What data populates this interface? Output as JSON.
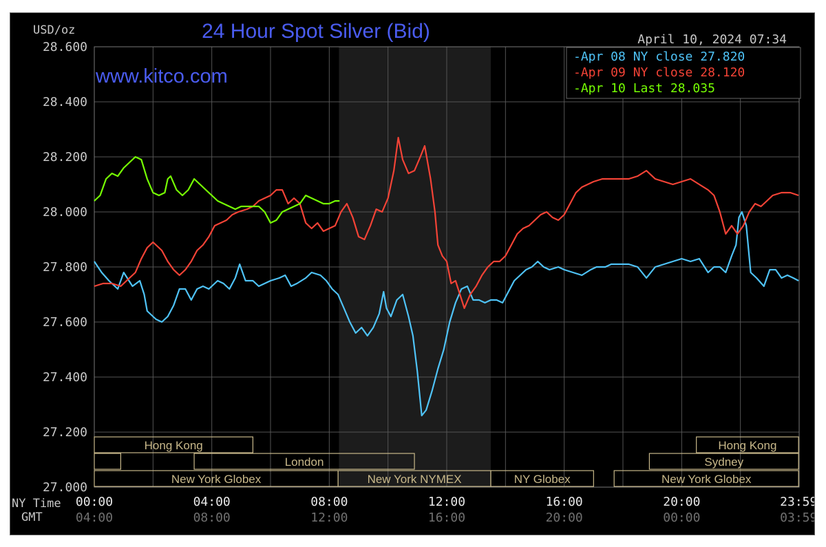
{
  "chart_data": {
    "type": "line",
    "title": "24 Hour Spot Silver (Bid)",
    "ylabel": "USD/oz",
    "watermark": "www.kitco.com",
    "timestamp": "April 10, 2024 07:34",
    "ylim": [
      27.0,
      28.6
    ],
    "y_ticks": [
      "28.600",
      "28.400",
      "28.200",
      "28.000",
      "27.800",
      "27.600",
      "27.400",
      "27.200",
      "27.000"
    ],
    "y_tick_values": [
      28.6,
      28.4,
      28.2,
      28.0,
      27.8,
      27.6,
      27.4,
      27.2,
      27.0
    ],
    "x_axis_label_ny": "NY Time",
    "x_axis_label_gmt": "GMT",
    "x_ticks_ny": [
      "00:00",
      "04:00",
      "08:00",
      "12:00",
      "16:00",
      "20:00",
      "23:59"
    ],
    "x_ticks_gmt": [
      "04:00",
      "08:00",
      "12:00",
      "16:00",
      "20:00",
      "00:00",
      "03:59"
    ],
    "x_tick_hours": [
      0,
      4,
      8,
      12,
      16,
      20,
      23.983
    ],
    "xlim_hours": [
      0,
      24
    ],
    "grid": true,
    "legend_position": "top-right",
    "shaded_session_hours": [
      8.33,
      13.5
    ],
    "colors": {
      "background": "#000000",
      "grid": "#555555",
      "axis_text": "#c8c8c8",
      "title": "#4a5cf0",
      "session_box": "#c8b88a",
      "shade": "#1c1c1c"
    },
    "series": [
      {
        "name": "Apr 08 NY close 27.820",
        "color": "#4fc3f7",
        "points": [
          [
            0,
            27.82
          ],
          [
            0.25,
            27.78
          ],
          [
            0.5,
            27.75
          ],
          [
            0.8,
            27.72
          ],
          [
            1.0,
            27.78
          ],
          [
            1.3,
            27.73
          ],
          [
            1.55,
            27.75
          ],
          [
            1.7,
            27.7
          ],
          [
            1.8,
            27.64
          ],
          [
            2.1,
            27.61
          ],
          [
            2.3,
            27.6
          ],
          [
            2.5,
            27.62
          ],
          [
            2.7,
            27.66
          ],
          [
            2.9,
            27.72
          ],
          [
            3.1,
            27.72
          ],
          [
            3.3,
            27.68
          ],
          [
            3.5,
            27.72
          ],
          [
            3.7,
            27.73
          ],
          [
            3.9,
            27.72
          ],
          [
            4.2,
            27.75
          ],
          [
            4.4,
            27.74
          ],
          [
            4.6,
            27.72
          ],
          [
            4.8,
            27.76
          ],
          [
            4.95,
            27.81
          ],
          [
            5.15,
            27.75
          ],
          [
            5.4,
            27.75
          ],
          [
            5.6,
            27.73
          ],
          [
            5.8,
            27.74
          ],
          [
            6.0,
            27.75
          ],
          [
            6.3,
            27.76
          ],
          [
            6.5,
            27.77
          ],
          [
            6.7,
            27.73
          ],
          [
            6.9,
            27.74
          ],
          [
            7.2,
            27.76
          ],
          [
            7.4,
            27.78
          ],
          [
            7.7,
            27.77
          ],
          [
            7.9,
            27.75
          ],
          [
            8.1,
            27.72
          ],
          [
            8.3,
            27.7
          ],
          [
            8.5,
            27.65
          ],
          [
            8.7,
            27.6
          ],
          [
            8.9,
            27.56
          ],
          [
            9.1,
            27.58
          ],
          [
            9.3,
            27.55
          ],
          [
            9.5,
            27.58
          ],
          [
            9.7,
            27.63
          ],
          [
            9.85,
            27.71
          ],
          [
            9.95,
            27.65
          ],
          [
            10.1,
            27.62
          ],
          [
            10.3,
            27.68
          ],
          [
            10.5,
            27.7
          ],
          [
            10.7,
            27.62
          ],
          [
            10.85,
            27.55
          ],
          [
            11.0,
            27.42
          ],
          [
            11.15,
            27.26
          ],
          [
            11.3,
            27.28
          ],
          [
            11.5,
            27.35
          ],
          [
            11.7,
            27.43
          ],
          [
            11.9,
            27.5
          ],
          [
            12.1,
            27.6
          ],
          [
            12.3,
            27.67
          ],
          [
            12.5,
            27.72
          ],
          [
            12.7,
            27.73
          ],
          [
            12.9,
            27.68
          ],
          [
            13.1,
            27.68
          ],
          [
            13.3,
            27.67
          ],
          [
            13.5,
            27.68
          ],
          [
            13.7,
            27.68
          ],
          [
            13.9,
            27.67
          ],
          [
            14.1,
            27.71
          ],
          [
            14.3,
            27.75
          ],
          [
            14.5,
            27.77
          ],
          [
            14.7,
            27.79
          ],
          [
            14.9,
            27.8
          ],
          [
            15.1,
            27.82
          ],
          [
            15.3,
            27.8
          ],
          [
            15.5,
            27.79
          ],
          [
            15.8,
            27.8
          ],
          [
            16.0,
            27.79
          ],
          [
            16.3,
            27.78
          ],
          [
            16.6,
            27.77
          ],
          [
            16.9,
            27.79
          ],
          [
            17.1,
            27.8
          ],
          [
            17.4,
            27.8
          ],
          [
            17.6,
            27.81
          ],
          [
            17.9,
            27.81
          ],
          [
            18.2,
            27.81
          ],
          [
            18.5,
            27.8
          ],
          [
            18.8,
            27.76
          ],
          [
            19.1,
            27.8
          ],
          [
            19.4,
            27.81
          ],
          [
            19.7,
            27.82
          ],
          [
            20.0,
            27.83
          ],
          [
            20.3,
            27.82
          ],
          [
            20.6,
            27.83
          ],
          [
            20.9,
            27.78
          ],
          [
            21.1,
            27.8
          ],
          [
            21.3,
            27.8
          ],
          [
            21.5,
            27.78
          ],
          [
            21.7,
            27.84
          ],
          [
            21.85,
            27.88
          ],
          [
            21.95,
            27.98
          ],
          [
            22.05,
            28.0
          ],
          [
            22.2,
            27.95
          ],
          [
            22.35,
            27.78
          ],
          [
            22.55,
            27.76
          ],
          [
            22.8,
            27.73
          ],
          [
            23.0,
            27.79
          ],
          [
            23.2,
            27.79
          ],
          [
            23.4,
            27.76
          ],
          [
            23.6,
            27.77
          ],
          [
            23.8,
            27.76
          ],
          [
            23.98,
            27.75
          ]
        ]
      },
      {
        "name": "Apr 09 NY close 28.120",
        "color": "#f44336",
        "points": [
          [
            0,
            27.73
          ],
          [
            0.3,
            27.74
          ],
          [
            0.6,
            27.74
          ],
          [
            0.9,
            27.73
          ],
          [
            1.1,
            27.75
          ],
          [
            1.4,
            27.78
          ],
          [
            1.6,
            27.83
          ],
          [
            1.8,
            27.87
          ],
          [
            2.0,
            27.89
          ],
          [
            2.3,
            27.86
          ],
          [
            2.5,
            27.82
          ],
          [
            2.7,
            27.79
          ],
          [
            2.9,
            27.77
          ],
          [
            3.1,
            27.79
          ],
          [
            3.3,
            27.82
          ],
          [
            3.5,
            27.86
          ],
          [
            3.7,
            27.88
          ],
          [
            3.9,
            27.91
          ],
          [
            4.1,
            27.95
          ],
          [
            4.3,
            27.96
          ],
          [
            4.5,
            27.97
          ],
          [
            4.7,
            27.99
          ],
          [
            4.9,
            28.0
          ],
          [
            5.2,
            28.01
          ],
          [
            5.4,
            28.02
          ],
          [
            5.6,
            28.04
          ],
          [
            5.8,
            28.05
          ],
          [
            6.0,
            28.06
          ],
          [
            6.2,
            28.08
          ],
          [
            6.4,
            28.08
          ],
          [
            6.6,
            28.03
          ],
          [
            6.8,
            28.05
          ],
          [
            7.0,
            28.03
          ],
          [
            7.2,
            27.96
          ],
          [
            7.4,
            27.94
          ],
          [
            7.6,
            27.96
          ],
          [
            7.8,
            27.93
          ],
          [
            8.0,
            27.94
          ],
          [
            8.2,
            27.95
          ],
          [
            8.4,
            28.0
          ],
          [
            8.6,
            28.03
          ],
          [
            8.8,
            27.98
          ],
          [
            9.0,
            27.91
          ],
          [
            9.2,
            27.9
          ],
          [
            9.4,
            27.95
          ],
          [
            9.6,
            28.01
          ],
          [
            9.8,
            28.0
          ],
          [
            10.0,
            28.05
          ],
          [
            10.2,
            28.15
          ],
          [
            10.35,
            28.27
          ],
          [
            10.5,
            28.19
          ],
          [
            10.7,
            28.14
          ],
          [
            10.9,
            28.15
          ],
          [
            11.1,
            28.2
          ],
          [
            11.25,
            28.24
          ],
          [
            11.45,
            28.12
          ],
          [
            11.6,
            28.0
          ],
          [
            11.7,
            27.88
          ],
          [
            11.85,
            27.84
          ],
          [
            12.0,
            27.82
          ],
          [
            12.15,
            27.74
          ],
          [
            12.3,
            27.75
          ],
          [
            12.45,
            27.7
          ],
          [
            12.6,
            27.65
          ],
          [
            12.8,
            27.7
          ],
          [
            13.0,
            27.73
          ],
          [
            13.2,
            27.77
          ],
          [
            13.4,
            27.8
          ],
          [
            13.6,
            27.82
          ],
          [
            13.8,
            27.82
          ],
          [
            14.0,
            27.84
          ],
          [
            14.2,
            27.88
          ],
          [
            14.4,
            27.92
          ],
          [
            14.6,
            27.94
          ],
          [
            14.8,
            27.95
          ],
          [
            15.0,
            27.97
          ],
          [
            15.2,
            27.99
          ],
          [
            15.4,
            28.0
          ],
          [
            15.6,
            27.98
          ],
          [
            15.8,
            27.97
          ],
          [
            16.0,
            27.99
          ],
          [
            16.2,
            28.03
          ],
          [
            16.4,
            28.07
          ],
          [
            16.6,
            28.09
          ],
          [
            16.8,
            28.1
          ],
          [
            17.0,
            28.11
          ],
          [
            17.3,
            28.12
          ],
          [
            17.6,
            28.12
          ],
          [
            17.9,
            28.12
          ],
          [
            18.2,
            28.12
          ],
          [
            18.5,
            28.13
          ],
          [
            18.8,
            28.15
          ],
          [
            19.1,
            28.12
          ],
          [
            19.4,
            28.11
          ],
          [
            19.7,
            28.1
          ],
          [
            20.0,
            28.11
          ],
          [
            20.3,
            28.12
          ],
          [
            20.6,
            28.1
          ],
          [
            20.9,
            28.08
          ],
          [
            21.1,
            28.06
          ],
          [
            21.3,
            28.0
          ],
          [
            21.5,
            27.92
          ],
          [
            21.7,
            27.95
          ],
          [
            21.9,
            27.92
          ],
          [
            22.1,
            27.95
          ],
          [
            22.3,
            28.0
          ],
          [
            22.5,
            28.03
          ],
          [
            22.7,
            28.02
          ],
          [
            22.9,
            28.04
          ],
          [
            23.1,
            28.06
          ],
          [
            23.4,
            28.07
          ],
          [
            23.7,
            28.07
          ],
          [
            23.98,
            28.06
          ]
        ]
      },
      {
        "name": "Apr 10 Last 28.035",
        "color": "#76ff03",
        "points": [
          [
            0,
            28.04
          ],
          [
            0.2,
            28.06
          ],
          [
            0.4,
            28.12
          ],
          [
            0.6,
            28.14
          ],
          [
            0.8,
            28.13
          ],
          [
            1.0,
            28.16
          ],
          [
            1.2,
            28.18
          ],
          [
            1.4,
            28.2
          ],
          [
            1.6,
            28.19
          ],
          [
            1.8,
            28.12
          ],
          [
            2.0,
            28.07
          ],
          [
            2.2,
            28.06
          ],
          [
            2.4,
            28.07
          ],
          [
            2.5,
            28.12
          ],
          [
            2.6,
            28.13
          ],
          [
            2.8,
            28.08
          ],
          [
            3.0,
            28.06
          ],
          [
            3.2,
            28.08
          ],
          [
            3.4,
            28.12
          ],
          [
            3.6,
            28.1
          ],
          [
            3.8,
            28.08
          ],
          [
            4.0,
            28.06
          ],
          [
            4.2,
            28.04
          ],
          [
            4.4,
            28.03
          ],
          [
            4.6,
            28.02
          ],
          [
            4.8,
            28.01
          ],
          [
            5.0,
            28.02
          ],
          [
            5.3,
            28.02
          ],
          [
            5.6,
            28.02
          ],
          [
            5.8,
            28.0
          ],
          [
            6.0,
            27.96
          ],
          [
            6.2,
            27.97
          ],
          [
            6.4,
            28.0
          ],
          [
            6.6,
            28.01
          ],
          [
            6.8,
            28.02
          ],
          [
            7.0,
            28.03
          ],
          [
            7.2,
            28.06
          ],
          [
            7.4,
            28.05
          ],
          [
            7.6,
            28.04
          ],
          [
            7.8,
            28.03
          ],
          [
            8.0,
            28.03
          ],
          [
            8.2,
            28.04
          ],
          [
            8.35,
            28.04
          ]
        ]
      }
    ]
  },
  "sessions": [
    {
      "label": "Hong Kong",
      "row": 0,
      "start": 0,
      "end": 5.4
    },
    {
      "label": "",
      "row": 1,
      "start": 0,
      "end": 0.9
    },
    {
      "label": "London",
      "row": 1,
      "start": 3.4,
      "end": 10.9
    },
    {
      "label": "New York Globex",
      "row": 2,
      "start": 0,
      "end": 8.3
    },
    {
      "label": "New York NYMEX",
      "row": 2,
      "start": 8.3,
      "end": 13.5
    },
    {
      "label": "NY Globex",
      "row": 2,
      "start": 13.5,
      "end": 17.0
    },
    {
      "label": "Hong Kong",
      "row": 0,
      "start": 20.5,
      "end": 23.98
    },
    {
      "label": "Sydney",
      "row": 1,
      "start": 18.9,
      "end": 23.98
    },
    {
      "label": "New York Globex",
      "row": 2,
      "start": 17.7,
      "end": 23.98
    }
  ]
}
